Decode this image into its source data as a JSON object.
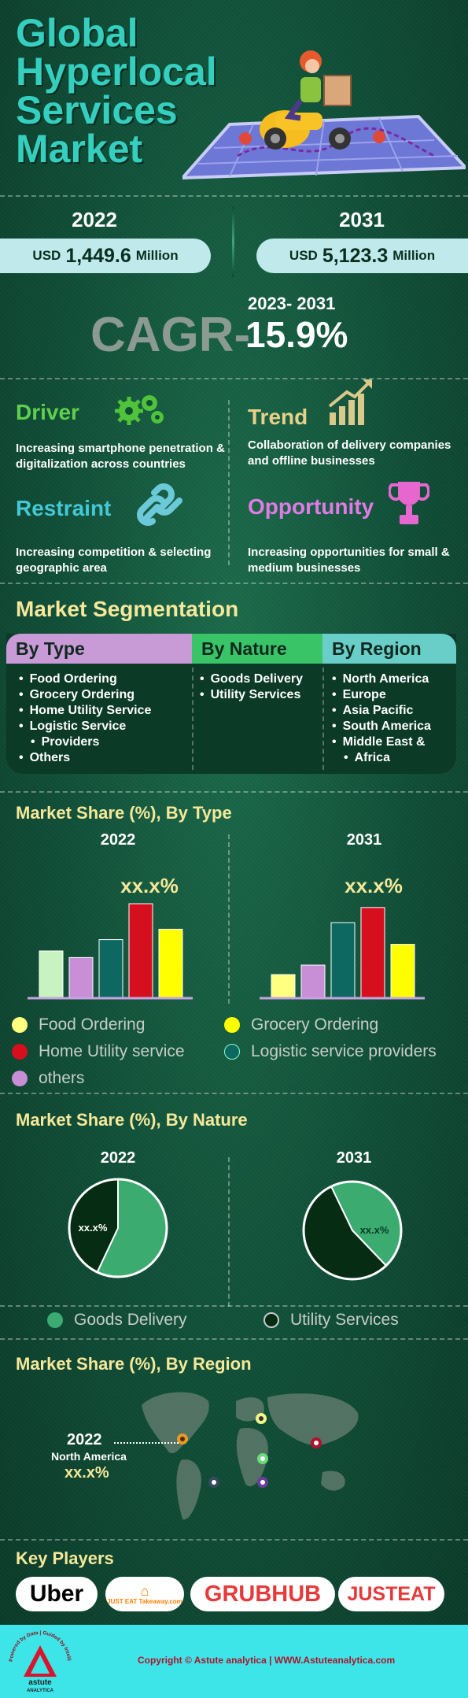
{
  "title": "Global Hyperlocal Services Market",
  "summary": {
    "start": {
      "year": "2022",
      "currency": "USD",
      "value": "1,449.6",
      "unit": "Million"
    },
    "end": {
      "year": "2031",
      "currency": "USD",
      "value": "5,123.3",
      "unit": "Million"
    },
    "cagr_label": "CAGR-",
    "cagr_period": "2023- 2031",
    "cagr_value": "15.9%"
  },
  "factors": {
    "driver": {
      "heading": "Driver",
      "text": "Increasing smartphone penetration & digitalization across countries"
    },
    "trend": {
      "heading": "Trend",
      "text": "Collaboration of delivery companies and offline businesses"
    },
    "restraint": {
      "heading": "Restraint",
      "text": "Increasing competition & selecting geographic area"
    },
    "opportunity": {
      "heading": "Opportunity",
      "text": "Increasing opportunities for small & medium businesses"
    }
  },
  "segmentation": {
    "title": "Market Segmentation",
    "by_type": {
      "heading": "By Type",
      "items": [
        "Food Ordering",
        "Grocery Ordering",
        "Home Utility Service",
        "Logistic Service",
        "Providers",
        "Others"
      ]
    },
    "by_nature": {
      "heading": "By Nature",
      "items": [
        "Goods Delivery",
        "Utility Services"
      ]
    },
    "by_region": {
      "heading": "By Region",
      "items": [
        "North America",
        "Europe",
        "Asia Pacific",
        "South America",
        "Middle East &",
        "Africa"
      ]
    }
  },
  "type_section": {
    "title": "Market Share (%), By Type",
    "legend": [
      {
        "label": "Food Ordering",
        "color": "#c8f3c0"
      },
      {
        "label": "Grocery Ordering",
        "color": "#ffff00"
      },
      {
        "label": "Home Utility service",
        "color": "#d60f1e"
      },
      {
        "label": "Logistic service providers",
        "color": "#0d6862"
      },
      {
        "label": "others",
        "color": "#c88ed6"
      }
    ]
  },
  "nature_section": {
    "title": "Market Share (%), By Nature",
    "legend": [
      {
        "label": "Goods Delivery",
        "color": "#3bab70"
      },
      {
        "label": "Utility Services",
        "color": "#062c13"
      }
    ]
  },
  "region_section": {
    "title": "Market Share (%), By Region",
    "year": "2022",
    "region": "North America",
    "value": "xx.x%"
  },
  "key_players": {
    "title": "Key Players",
    "logos": {
      "uber": "Uber",
      "takeaway": "JUST EAT Takeaway.com",
      "grubhub": "GRUBHUB",
      "justeat": "JUSTEAT"
    }
  },
  "footer": {
    "copyright": "Copyright © Astute analytica | WWW.Astuteanalytica.com",
    "logo_text": "astute",
    "logo_sub": "ANALYTICA",
    "tagline": "Powered by Data | Guided by Intelligence"
  },
  "chart_data": [
    {
      "type": "bar",
      "year": "2022",
      "categories": [
        "Food Ordering",
        "others",
        "Logistic service providers",
        "Home Utility service",
        "Grocery Ordering"
      ],
      "values": [
        50,
        43,
        62,
        100,
        73
      ],
      "colors": [
        "#c8f3c0",
        "#c88ed6",
        "#0d6862",
        "#d60f1e",
        "#ffff00"
      ],
      "ylim": [
        0,
        100
      ],
      "annotation": "xx.x%"
    },
    {
      "type": "bar",
      "year": "2031",
      "categories": [
        "Food Ordering",
        "others",
        "Logistic service providers",
        "Home Utility service",
        "Grocery Ordering"
      ],
      "values": [
        25,
        35,
        80,
        96,
        57
      ],
      "colors": [
        "#ffff80",
        "#c88ed6",
        "#0d6862",
        "#d60f1e",
        "#ffff00"
      ],
      "ylim": [
        0,
        100
      ],
      "annotation": "xx.x%"
    },
    {
      "type": "pie",
      "year": "2022",
      "labels": [
        "Goods Delivery",
        "Utility Services"
      ],
      "values": [
        57,
        43
      ],
      "colors": [
        "#3bab70",
        "#062c13"
      ],
      "annotation": "xx.x%"
    },
    {
      "type": "pie",
      "year": "2031",
      "labels": [
        "Goods Delivery",
        "Utility Services"
      ],
      "values": [
        45,
        55
      ],
      "colors": [
        "#3bab70",
        "#062c13"
      ],
      "annotation": "xx.x%"
    }
  ]
}
